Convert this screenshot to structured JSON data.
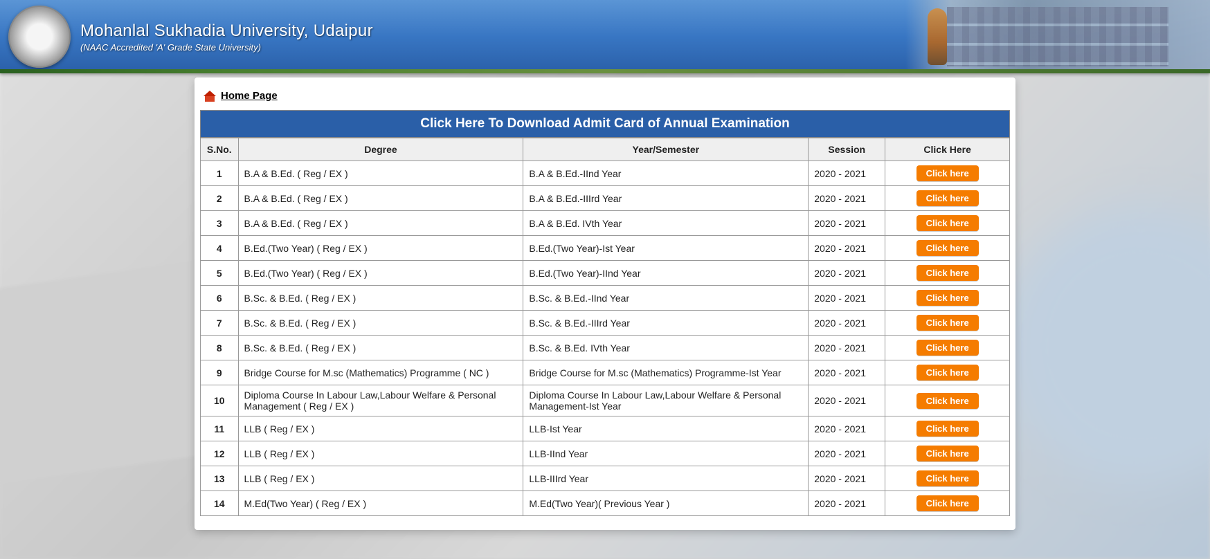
{
  "header": {
    "title": "Mohanlal Sukhadia University, Udaipur",
    "subtitle": "(NAAC Accredited 'A' Grade State University)"
  },
  "nav": {
    "home_label": "Home Page"
  },
  "band_title": "Click Here To Download Admit Card of Annual Examination",
  "columns": {
    "sno": "S.No.",
    "degree": "Degree",
    "year": "Year/Semester",
    "session": "Session",
    "click": "Click Here"
  },
  "button_label": "Click here",
  "rows": [
    {
      "sno": "1",
      "degree": "B.A & B.Ed. ( Reg / EX )",
      "year": "B.A & B.Ed.-IInd Year",
      "session": "2020 - 2021"
    },
    {
      "sno": "2",
      "degree": "B.A & B.Ed. ( Reg / EX )",
      "year": "B.A & B.Ed.-IIIrd Year",
      "session": "2020 - 2021"
    },
    {
      "sno": "3",
      "degree": "B.A & B.Ed. ( Reg / EX )",
      "year": "B.A & B.Ed. IVth Year",
      "session": "2020 - 2021"
    },
    {
      "sno": "4",
      "degree": "B.Ed.(Two Year) ( Reg / EX )",
      "year": "B.Ed.(Two Year)-Ist Year",
      "session": "2020 - 2021"
    },
    {
      "sno": "5",
      "degree": "B.Ed.(Two Year) ( Reg / EX )",
      "year": "B.Ed.(Two Year)-IInd Year",
      "session": "2020 - 2021"
    },
    {
      "sno": "6",
      "degree": "B.Sc. & B.Ed. ( Reg / EX )",
      "year": "B.Sc. & B.Ed.-IInd Year",
      "session": "2020 - 2021"
    },
    {
      "sno": "7",
      "degree": "B.Sc. & B.Ed. ( Reg / EX )",
      "year": "B.Sc. & B.Ed.-IIIrd Year",
      "session": "2020 - 2021"
    },
    {
      "sno": "8",
      "degree": "B.Sc. & B.Ed. ( Reg / EX )",
      "year": "B.Sc. & B.Ed. IVth Year",
      "session": "2020 - 2021"
    },
    {
      "sno": "9",
      "degree": "Bridge Course for M.sc (Mathematics) Programme ( NC )",
      "year": "Bridge Course for M.sc (Mathematics) Programme-Ist Year",
      "session": "2020 - 2021"
    },
    {
      "sno": "10",
      "degree": "Diploma Course In Labour Law,Labour Welfare & Personal Management ( Reg / EX )",
      "year": "Diploma Course In Labour Law,Labour Welfare & Personal Management-Ist Year",
      "session": "2020 - 2021"
    },
    {
      "sno": "11",
      "degree": "LLB ( Reg / EX )",
      "year": "LLB-Ist Year",
      "session": "2020 - 2021"
    },
    {
      "sno": "12",
      "degree": "LLB ( Reg / EX )",
      "year": "LLB-IInd Year",
      "session": "2020 - 2021"
    },
    {
      "sno": "13",
      "degree": "LLB ( Reg / EX )",
      "year": "LLB-IIIrd Year",
      "session": "2020 - 2021"
    },
    {
      "sno": "14",
      "degree": "M.Ed(Two Year) ( Reg / EX )",
      "year": "M.Ed(Two Year)( Previous Year )",
      "session": "2020 - 2021"
    }
  ],
  "colors": {
    "header_grad_top": "#5b95d5",
    "header_grad_bot": "#2a5fa8",
    "band_bg": "#2a5fa8",
    "button_bg": "#f57c00",
    "border": "#999999"
  }
}
